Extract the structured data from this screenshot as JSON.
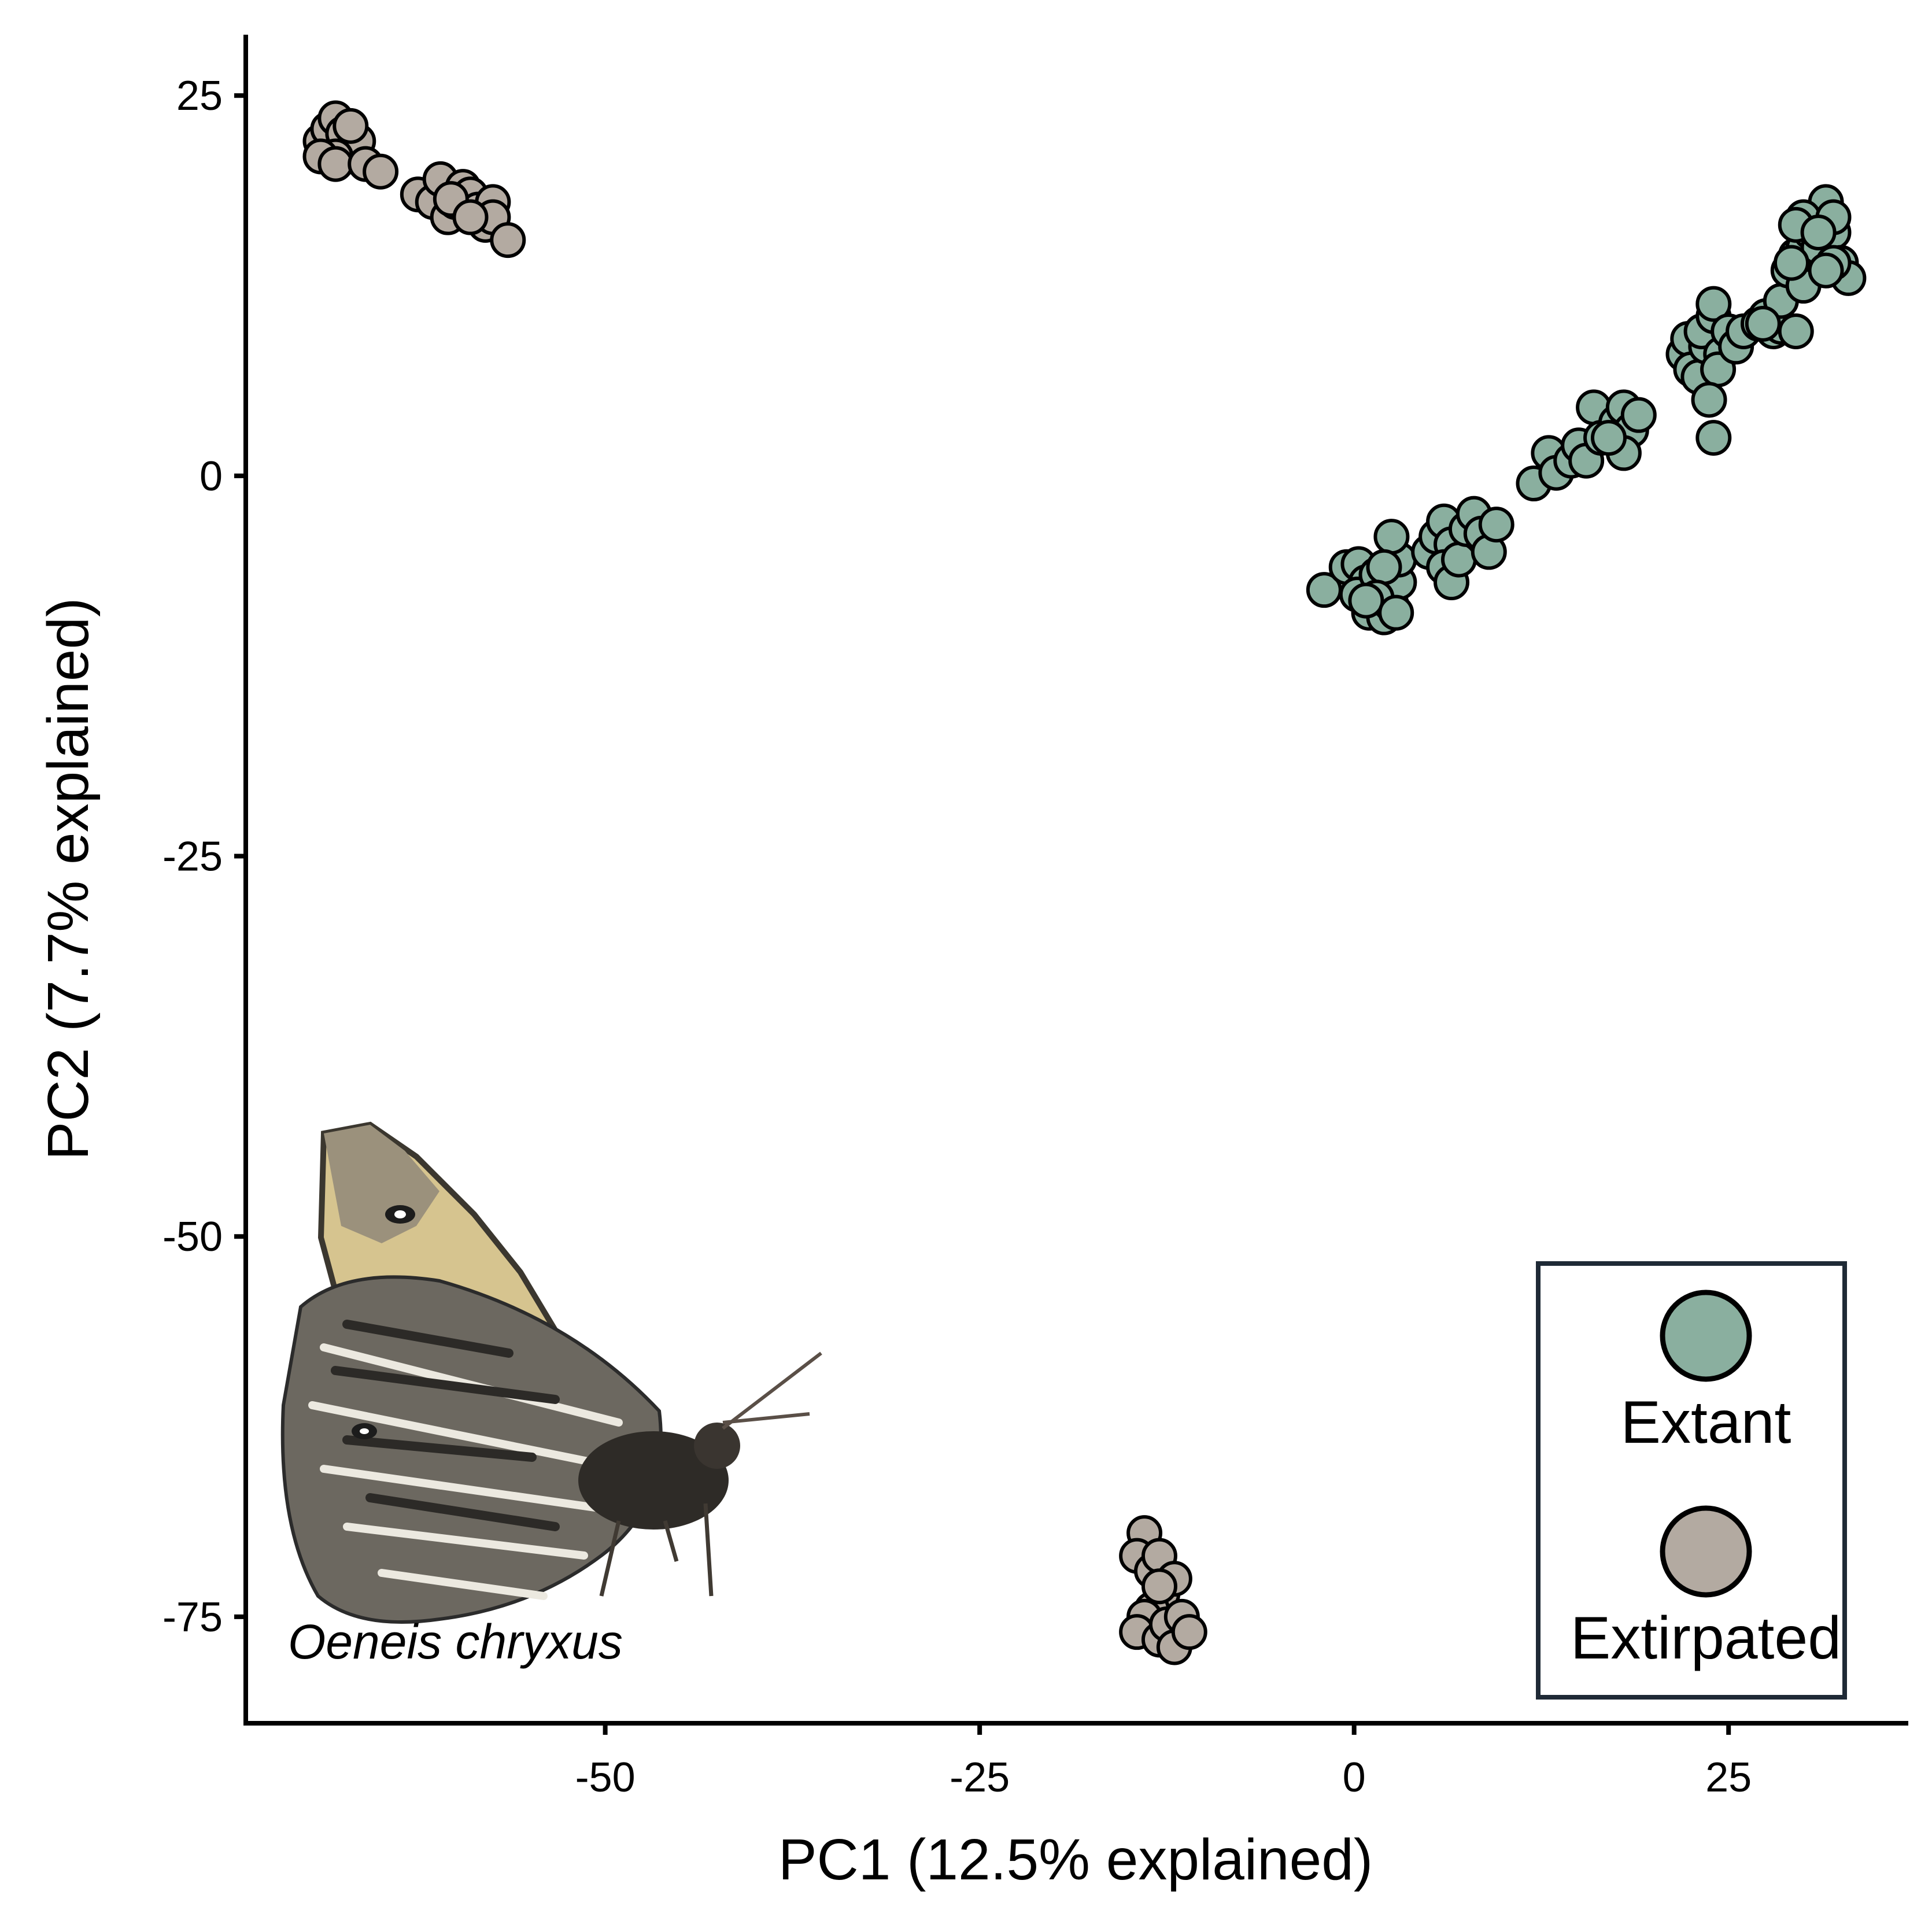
{
  "chart_data": {
    "type": "scatter",
    "title": "",
    "xlabel": "PC1 (12.5% explained)",
    "ylabel": "PC2 (7.7% explained)",
    "xlim": [
      -74,
      37
    ],
    "ylim": [
      -82,
      29
    ],
    "xticks": [
      -50,
      -25,
      0,
      25
    ],
    "yticks": [
      25,
      0,
      -25,
      -50,
      -75
    ],
    "xtick_labels": [
      "-50",
      "-25",
      "0",
      "25"
    ],
    "ytick_labels": [
      "25",
      "0",
      "-25",
      "-50",
      "-75"
    ],
    "grid": false,
    "legend_position": "bottom-right",
    "annotation": "Oeneis chryxus",
    "series": [
      {
        "name": "Extant",
        "color": "#8aaf9f",
        "points": [
          [
            -2,
            -7.5
          ],
          [
            -0.5,
            -6
          ],
          [
            0.3,
            -5.8
          ],
          [
            0.8,
            -7
          ],
          [
            0.2,
            -7.8
          ],
          [
            1.5,
            -6.5
          ],
          [
            1,
            -9
          ],
          [
            2,
            -9.3
          ],
          [
            2.5,
            -8.5
          ],
          [
            3,
            -7
          ],
          [
            3,
            -5.5
          ],
          [
            2.5,
            -4
          ],
          [
            2,
            -6
          ],
          [
            1.5,
            -8
          ],
          [
            0.8,
            -8.2
          ],
          [
            2.8,
            -9
          ],
          [
            5,
            -5
          ],
          [
            5.5,
            -4
          ],
          [
            6,
            -3
          ],
          [
            6.5,
            -4.5
          ],
          [
            6,
            -6
          ],
          [
            6.5,
            -7
          ],
          [
            7,
            -5.5
          ],
          [
            7.5,
            -3.5
          ],
          [
            8,
            -2.5
          ],
          [
            8.5,
            -3.8
          ],
          [
            9,
            -5
          ],
          [
            9.5,
            -3.2
          ],
          [
            12,
            -0.5
          ],
          [
            13,
            1.5
          ],
          [
            13.5,
            0.2
          ],
          [
            14.5,
            1
          ],
          [
            15,
            2
          ],
          [
            15.5,
            1
          ],
          [
            16,
            4.5
          ],
          [
            16.5,
            2.5
          ],
          [
            17.5,
            3.5
          ],
          [
            18,
            4.5
          ],
          [
            18.5,
            3
          ],
          [
            18,
            1.5
          ],
          [
            19,
            4
          ],
          [
            17,
            2.5
          ],
          [
            22,
            8
          ],
          [
            22.3,
            9
          ],
          [
            22.5,
            7
          ],
          [
            23,
            6.5
          ],
          [
            23.5,
            8.5
          ],
          [
            23.2,
            9.5
          ],
          [
            24,
            10.5
          ],
          [
            24,
            11.3
          ],
          [
            24.5,
            8
          ],
          [
            24.3,
            7
          ],
          [
            25,
            9.5
          ],
          [
            23.7,
            5
          ],
          [
            24,
            2.5
          ],
          [
            25.5,
            8.5
          ],
          [
            26,
            9.5
          ],
          [
            27,
            10
          ],
          [
            27.5,
            10.5
          ],
          [
            28,
            9.5
          ],
          [
            28.5,
            9.8
          ],
          [
            29.5,
            9.5
          ],
          [
            28.5,
            11.5
          ],
          [
            27.3,
            10
          ],
          [
            29,
            13.5
          ],
          [
            29.5,
            14.5
          ],
          [
            30,
            15
          ],
          [
            30.5,
            16
          ],
          [
            31,
            17
          ],
          [
            31.5,
            18
          ],
          [
            30,
            17
          ],
          [
            29.5,
            16.5
          ],
          [
            31,
            15
          ],
          [
            32,
            16
          ],
          [
            32.5,
            14
          ],
          [
            33,
            13
          ],
          [
            32,
            14
          ],
          [
            30,
            12.5
          ],
          [
            29.2,
            14
          ],
          [
            31.5,
            13.5
          ],
          [
            32,
            17
          ],
          [
            31,
            16
          ]
        ]
      },
      {
        "name": "Extirpated",
        "color": "#b3aaa1",
        "points": [
          [
            -69,
            22
          ],
          [
            -68.5,
            22.8
          ],
          [
            -68,
            23.5
          ],
          [
            -67.5,
            22.5
          ],
          [
            -67,
            21
          ],
          [
            -66.5,
            22
          ],
          [
            -68,
            21
          ],
          [
            -69,
            21
          ],
          [
            -68,
            20.5
          ],
          [
            -66,
            20.5
          ],
          [
            -65,
            20
          ],
          [
            -67,
            23
          ],
          [
            -62.5,
            18.5
          ],
          [
            -61.5,
            18
          ],
          [
            -61,
            19.5
          ],
          [
            -60.5,
            17
          ],
          [
            -60,
            18
          ],
          [
            -59.5,
            19
          ],
          [
            -59,
            18.5
          ],
          [
            -58.5,
            17.5
          ],
          [
            -58,
            17
          ],
          [
            -58,
            16.5
          ],
          [
            -57.5,
            18
          ],
          [
            -57.5,
            17
          ],
          [
            -56.5,
            15.5
          ],
          [
            -60.3,
            18.2
          ],
          [
            -59,
            17
          ],
          [
            -14,
            -69.5
          ],
          [
            -14.5,
            -71
          ],
          [
            -13.5,
            -72
          ],
          [
            -13,
            -71
          ],
          [
            -12.8,
            -73.5
          ],
          [
            -13.5,
            -74.5
          ],
          [
            -14,
            -75
          ],
          [
            -14.5,
            -76
          ],
          [
            -13,
            -76.5
          ],
          [
            -12.5,
            -75.5
          ],
          [
            -12,
            -77
          ],
          [
            -11.5,
            -75
          ],
          [
            -11,
            -76
          ],
          [
            -12,
            -72.5
          ],
          [
            -13,
            -73
          ]
        ]
      }
    ]
  }
}
